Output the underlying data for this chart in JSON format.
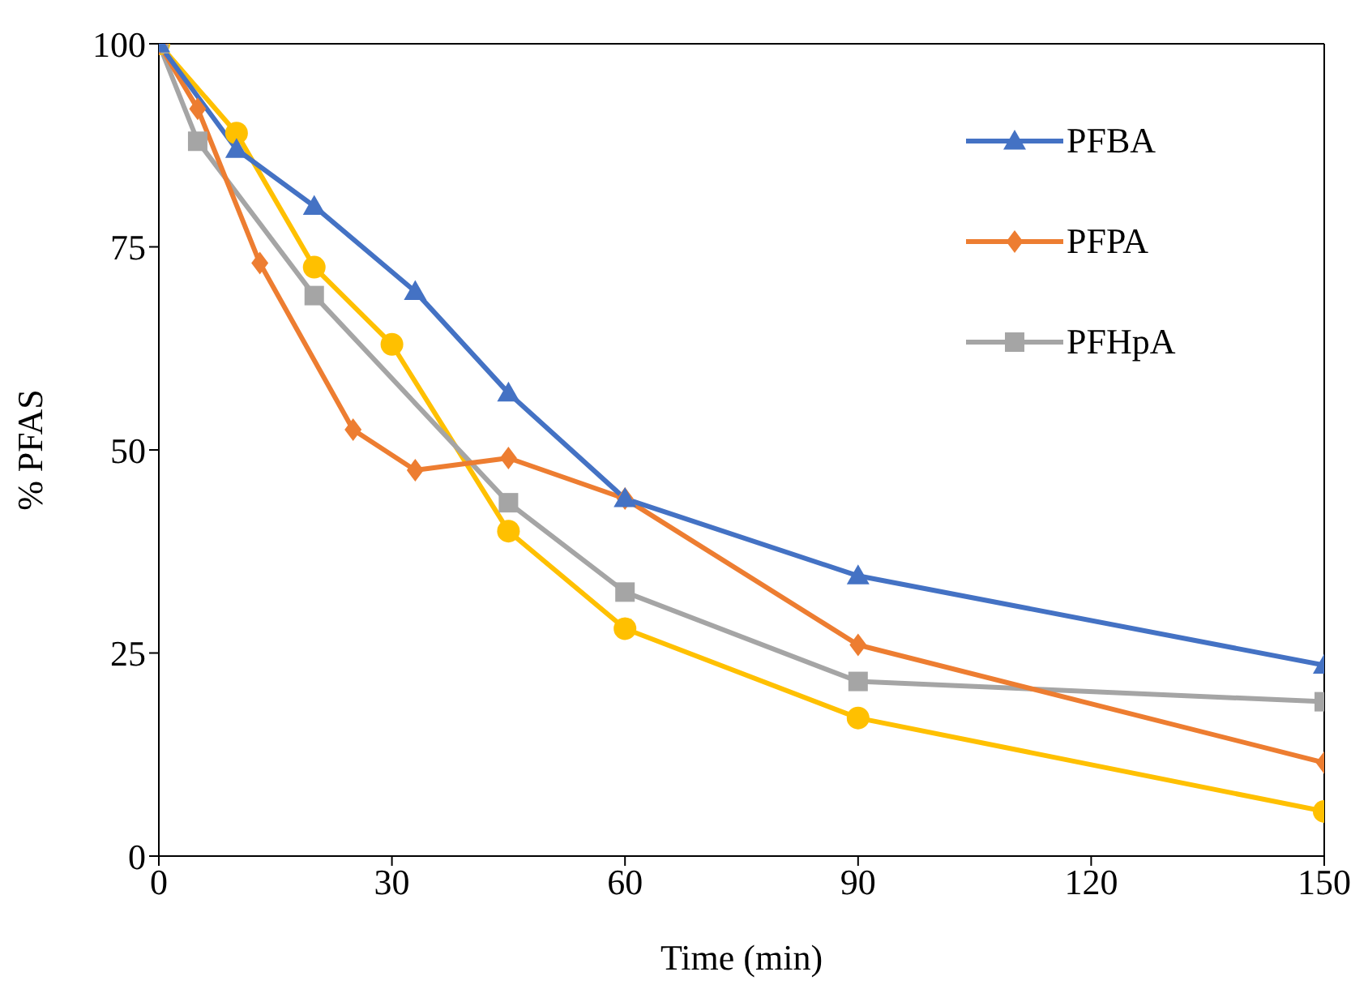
{
  "chart_data": {
    "type": "line",
    "xlabel": "Time (min)",
    "ylabel": "% PFAS",
    "xlim": [
      0,
      150
    ],
    "xticks": [
      0,
      30,
      60,
      90,
      120,
      150
    ],
    "ylim": [
      0,
      100
    ],
    "yticks": [
      0,
      25,
      50,
      75,
      100
    ],
    "grid": false,
    "legend": "top right",
    "series": [
      {
        "name": "PFBA",
        "color": "#4472c4",
        "marker": "triangle",
        "x": [
          0,
          10,
          20,
          33,
          45,
          60,
          90,
          150
        ],
        "values": [
          100,
          87,
          80,
          69.5,
          57,
          44,
          34.5,
          23.5
        ]
      },
      {
        "name": "PFPA",
        "color": "#ed7d31",
        "marker": "diamond",
        "x": [
          0,
          5,
          13,
          25,
          33,
          45,
          60,
          90,
          150
        ],
        "values": [
          100,
          92,
          73,
          52.5,
          47.5,
          49,
          44,
          26,
          11.5
        ]
      },
      {
        "name": "PFHpA",
        "color": "#a5a5a5",
        "marker": "square",
        "x": [
          0,
          5,
          20,
          45,
          60,
          90,
          150
        ],
        "values": [
          100,
          88,
          69,
          43.5,
          32.5,
          21.5,
          19
        ]
      },
      {
        "color": "#ffc000",
        "marker": "circle",
        "x": [
          0,
          10,
          20,
          30,
          45,
          60,
          90,
          150
        ],
        "values": [
          100,
          89,
          72.5,
          63,
          40,
          28,
          17,
          5.5
        ]
      }
    ]
  }
}
